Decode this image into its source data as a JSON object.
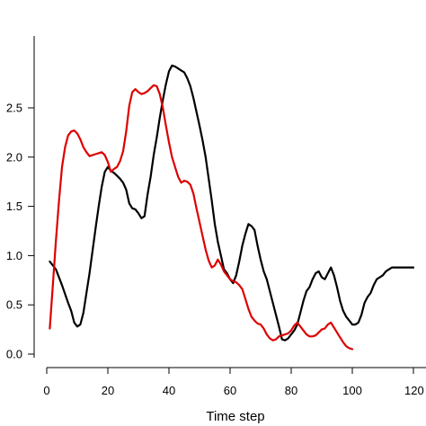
{
  "chart_data": {
    "type": "line",
    "title": "",
    "xlabel": "Time step",
    "ylabel": "",
    "xlim": [
      0,
      122
    ],
    "ylim": [
      -0.05,
      2.85
    ],
    "x_ticks": [
      0,
      20,
      40,
      60,
      80,
      100,
      120
    ],
    "x_tick_labels": [
      "0",
      "20",
      "40",
      "60",
      "80",
      "100",
      "120"
    ],
    "y_ticks": [
      0.0,
      0.5,
      1.0,
      1.5,
      2.0,
      2.5
    ],
    "y_tick_labels": [
      "0.0",
      "0.5",
      "1.0",
      "1.5",
      "2.0",
      "2.5"
    ],
    "grid": false,
    "legend": "none",
    "series": [
      {
        "color": "#000000",
        "points": [
          [
            1,
            0.94
          ],
          [
            3,
            0.86
          ],
          [
            5,
            0.7
          ],
          [
            7,
            0.52
          ],
          [
            8,
            0.44
          ],
          [
            9,
            0.32
          ],
          [
            10,
            0.28
          ],
          [
            11,
            0.3
          ],
          [
            12,
            0.42
          ],
          [
            13,
            0.62
          ],
          [
            14,
            0.82
          ],
          [
            15,
            1.05
          ],
          [
            16,
            1.28
          ],
          [
            17,
            1.5
          ],
          [
            18,
            1.7
          ],
          [
            19,
            1.85
          ],
          [
            20,
            1.9
          ],
          [
            21,
            1.86
          ],
          [
            22,
            1.84
          ],
          [
            23,
            1.81
          ],
          [
            24,
            1.78
          ],
          [
            25,
            1.74
          ],
          [
            26,
            1.67
          ],
          [
            27,
            1.53
          ],
          [
            28,
            1.48
          ],
          [
            29,
            1.47
          ],
          [
            30,
            1.43
          ],
          [
            31,
            1.38
          ],
          [
            32,
            1.4
          ],
          [
            33,
            1.62
          ],
          [
            34,
            1.8
          ],
          [
            35,
            2.02
          ],
          [
            36,
            2.2
          ],
          [
            37,
            2.4
          ],
          [
            38,
            2.58
          ],
          [
            39,
            2.74
          ],
          [
            40,
            2.87
          ],
          [
            41,
            2.93
          ],
          [
            42,
            2.92
          ],
          [
            43,
            2.9
          ],
          [
            44,
            2.88
          ],
          [
            45,
            2.86
          ],
          [
            46,
            2.8
          ],
          [
            47,
            2.72
          ],
          [
            48,
            2.6
          ],
          [
            49,
            2.46
          ],
          [
            50,
            2.32
          ],
          [
            51,
            2.17
          ],
          [
            52,
            2.0
          ],
          [
            53,
            1.78
          ],
          [
            54,
            1.56
          ],
          [
            55,
            1.32
          ],
          [
            56,
            1.14
          ],
          [
            57,
            1.0
          ],
          [
            58,
            0.86
          ],
          [
            59,
            0.82
          ],
          [
            60,
            0.76
          ],
          [
            61,
            0.72
          ],
          [
            62,
            0.8
          ],
          [
            63,
            0.94
          ],
          [
            64,
            1.1
          ],
          [
            65,
            1.22
          ],
          [
            66,
            1.32
          ],
          [
            67,
            1.3
          ],
          [
            68,
            1.26
          ],
          [
            69,
            1.1
          ],
          [
            70,
            0.96
          ],
          [
            71,
            0.84
          ],
          [
            72,
            0.76
          ],
          [
            73,
            0.64
          ],
          [
            74,
            0.52
          ],
          [
            75,
            0.4
          ],
          [
            76,
            0.28
          ],
          [
            77,
            0.15
          ],
          [
            78,
            0.14
          ],
          [
            79,
            0.16
          ],
          [
            80,
            0.2
          ],
          [
            81,
            0.24
          ],
          [
            82,
            0.3
          ],
          [
            83,
            0.42
          ],
          [
            84,
            0.54
          ],
          [
            85,
            0.64
          ],
          [
            86,
            0.68
          ],
          [
            87,
            0.76
          ],
          [
            88,
            0.82
          ],
          [
            89,
            0.84
          ],
          [
            90,
            0.78
          ],
          [
            91,
            0.76
          ],
          [
            92,
            0.82
          ],
          [
            93,
            0.88
          ],
          [
            94,
            0.8
          ],
          [
            95,
            0.68
          ],
          [
            96,
            0.54
          ],
          [
            97,
            0.44
          ],
          [
            98,
            0.38
          ],
          [
            99,
            0.34
          ],
          [
            100,
            0.3
          ],
          [
            101,
            0.3
          ],
          [
            102,
            0.32
          ],
          [
            103,
            0.4
          ],
          [
            104,
            0.52
          ],
          [
            105,
            0.58
          ],
          [
            106,
            0.62
          ],
          [
            107,
            0.7
          ],
          [
            108,
            0.76
          ],
          [
            109,
            0.78
          ],
          [
            110,
            0.8
          ],
          [
            111,
            0.84
          ],
          [
            112,
            0.86
          ],
          [
            113,
            0.88
          ],
          [
            114,
            0.88
          ],
          [
            120,
            0.88
          ]
        ]
      },
      {
        "color": "#dd0000",
        "points": [
          [
            1,
            0.26
          ],
          [
            2,
            0.7
          ],
          [
            3,
            1.15
          ],
          [
            4,
            1.55
          ],
          [
            5,
            1.9
          ],
          [
            6,
            2.1
          ],
          [
            7,
            2.22
          ],
          [
            8,
            2.26
          ],
          [
            9,
            2.27
          ],
          [
            10,
            2.24
          ],
          [
            11,
            2.18
          ],
          [
            12,
            2.1
          ],
          [
            13,
            2.05
          ],
          [
            14,
            2.01
          ],
          [
            15,
            2.02
          ],
          [
            16,
            2.03
          ],
          [
            17,
            2.04
          ],
          [
            18,
            2.05
          ],
          [
            19,
            2.02
          ],
          [
            20,
            1.95
          ],
          [
            21,
            1.85
          ],
          [
            22,
            1.88
          ],
          [
            23,
            1.9
          ],
          [
            24,
            1.96
          ],
          [
            25,
            2.06
          ],
          [
            26,
            2.26
          ],
          [
            27,
            2.52
          ],
          [
            28,
            2.66
          ],
          [
            29,
            2.69
          ],
          [
            30,
            2.66
          ],
          [
            31,
            2.64
          ],
          [
            32,
            2.65
          ],
          [
            33,
            2.67
          ],
          [
            34,
            2.7
          ],
          [
            35,
            2.73
          ],
          [
            36,
            2.72
          ],
          [
            37,
            2.64
          ],
          [
            38,
            2.5
          ],
          [
            39,
            2.32
          ],
          [
            40,
            2.15
          ],
          [
            41,
            2.0
          ],
          [
            42,
            1.9
          ],
          [
            43,
            1.8
          ],
          [
            44,
            1.74
          ],
          [
            45,
            1.76
          ],
          [
            46,
            1.75
          ],
          [
            47,
            1.72
          ],
          [
            48,
            1.63
          ],
          [
            49,
            1.48
          ],
          [
            50,
            1.34
          ],
          [
            51,
            1.2
          ],
          [
            52,
            1.06
          ],
          [
            53,
            0.95
          ],
          [
            54,
            0.88
          ],
          [
            55,
            0.9
          ],
          [
            56,
            0.96
          ],
          [
            57,
            0.91
          ],
          [
            58,
            0.84
          ],
          [
            59,
            0.8
          ],
          [
            60,
            0.76
          ],
          [
            61,
            0.74
          ],
          [
            62,
            0.73
          ],
          [
            63,
            0.7
          ],
          [
            64,
            0.66
          ],
          [
            65,
            0.56
          ],
          [
            66,
            0.46
          ],
          [
            67,
            0.38
          ],
          [
            68,
            0.34
          ],
          [
            69,
            0.31
          ],
          [
            70,
            0.3
          ],
          [
            71,
            0.26
          ],
          [
            72,
            0.2
          ],
          [
            73,
            0.16
          ],
          [
            74,
            0.14
          ],
          [
            75,
            0.15
          ],
          [
            76,
            0.18
          ],
          [
            77,
            0.19
          ],
          [
            78,
            0.2
          ],
          [
            79,
            0.21
          ],
          [
            80,
            0.24
          ],
          [
            81,
            0.29
          ],
          [
            82,
            0.32
          ],
          [
            83,
            0.28
          ],
          [
            84,
            0.24
          ],
          [
            85,
            0.2
          ],
          [
            86,
            0.18
          ],
          [
            87,
            0.18
          ],
          [
            88,
            0.19
          ],
          [
            89,
            0.22
          ],
          [
            90,
            0.25
          ],
          [
            91,
            0.26
          ],
          [
            92,
            0.3
          ],
          [
            93,
            0.32
          ],
          [
            94,
            0.27
          ],
          [
            95,
            0.22
          ],
          [
            96,
            0.17
          ],
          [
            97,
            0.12
          ],
          [
            98,
            0.08
          ],
          [
            99,
            0.06
          ],
          [
            100,
            0.05
          ]
        ]
      }
    ]
  }
}
